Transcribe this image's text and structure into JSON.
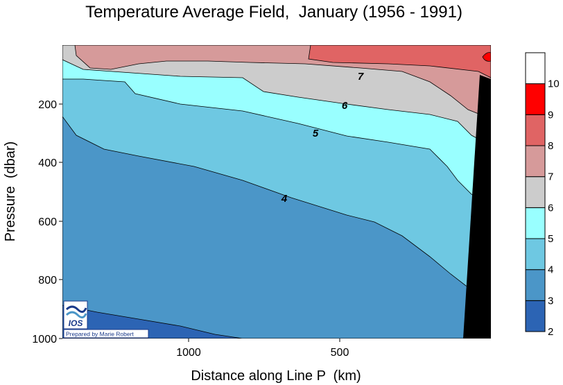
{
  "chart_data": {
    "type": "contour",
    "title": "Temperature Average Field,  January (1956 - 1991)",
    "xlabel": "Distance along Line P  (km)",
    "ylabel": "Pressure  (dbar)",
    "x_tick_labels": [
      "1000",
      "500"
    ],
    "y_tick_labels": [
      "200",
      "400",
      "600",
      "800",
      "1000"
    ],
    "ylim": [
      0,
      1000
    ],
    "y_inverted": true,
    "colorbar": {
      "levels": [
        2,
        3,
        4,
        5,
        6,
        7,
        8,
        9,
        10
      ],
      "colors": [
        "#2c64b4",
        "#4b96c8",
        "#6ec8e2",
        "#99ffff",
        "#cccccc",
        "#d69a9a",
        "#e06464",
        "#ff0000",
        "#ffffff"
      ]
    },
    "contour_labels": [
      "7",
      "6",
      "5",
      "4"
    ],
    "bathymetry_color": "#000000",
    "logo": {
      "text": "IOS",
      "credit": "Prepared by Marie Robert"
    }
  }
}
